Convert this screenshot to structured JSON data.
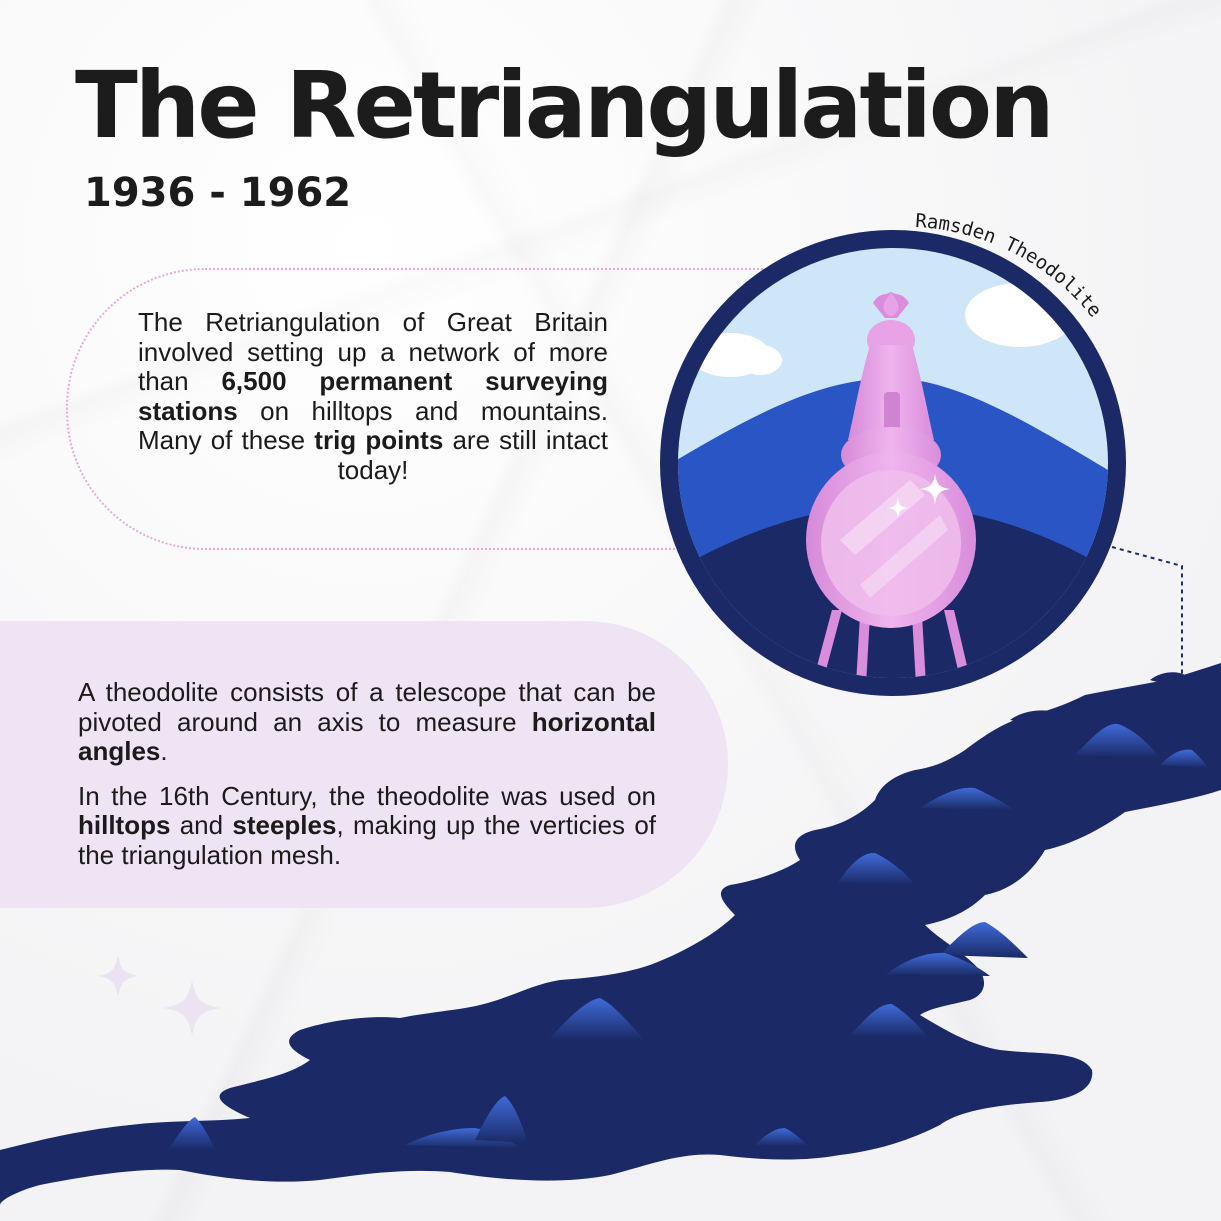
{
  "title": "The Retriangulation",
  "years": "1936 - 1962",
  "instrument_label": "Ramsden Theodolite",
  "intro": {
    "t1": "The Retriangulation of Great Britain involved setting up a network of more than ",
    "b1": "6,500 permanent surveying stations",
    "t2": " on hilltops and mountains. Many of these ",
    "b2": "trig points",
    "t3": " are still intact today!"
  },
  "theodolite": {
    "p1_text": "A theodolite consists of a telescope that can be pivoted around an axis to measure ",
    "p1_bold": "horizontal angles",
    "p1_end": ".",
    "p2_t1": "In the 16th Century, the theodolite was used on ",
    "p2_b1": "hilltops",
    "p2_t2": " and ",
    "p2_b2": "steeples",
    "p2_t3": ", making up the verticies of the triangulation mesh."
  },
  "colors": {
    "navy": "#1b2a66",
    "blue": "#2a55c4",
    "sky": "#cfe6f9",
    "pink": "#e7a3e6",
    "lavender": "#efe4f3"
  }
}
